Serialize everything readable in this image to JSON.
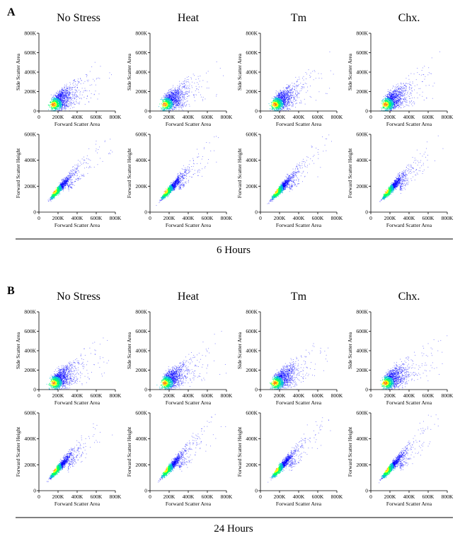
{
  "figure": {
    "panels": [
      {
        "letter": "A",
        "footer": "6 Hours",
        "columns": [
          "No Stress",
          "Heat",
          "Tm",
          "Chx."
        ]
      },
      {
        "letter": "B",
        "footer": "24 Hours",
        "columns": [
          "No Stress",
          "Heat",
          "Tm",
          "Chx."
        ]
      }
    ]
  },
  "chart_data": {
    "type": "scatter",
    "plot_style": "density-colored flow cytometry scatter (blue = sparse, green/yellow/red = dense)",
    "density_colors": [
      "#0000ff",
      "#00bcd4",
      "#00ff66",
      "#ffff00",
      "#ff7f00"
    ],
    "rows": [
      {
        "name": "side-vs-forward",
        "xlabel": "Forward Scatter Area",
        "ylabel": "Side Scatter Area",
        "xlim": [
          0,
          800000
        ],
        "ylim": [
          0,
          800000
        ],
        "xticks": [
          0,
          200000,
          400000,
          600000,
          800000
        ],
        "xticklabels": [
          "0",
          "200K",
          "400K",
          "600K",
          "800K"
        ],
        "yticks": [
          0,
          200000,
          400000,
          600000,
          800000
        ],
        "yticklabels": [
          "0",
          "200K",
          "400K",
          "600K",
          "800K"
        ],
        "population_center": [
          150000,
          70000
        ],
        "trend_slope": 0.75
      },
      {
        "name": "height-vs-area",
        "xlabel": "Forward Scatter Area",
        "ylabel": "Forward Scatter Height",
        "xlim": [
          0,
          800000
        ],
        "ylim": [
          0,
          600000
        ],
        "xticks": [
          0,
          200000,
          400000,
          600000,
          800000
        ],
        "xticklabels": [
          "0",
          "200K",
          "400K",
          "600K",
          "800K"
        ],
        "yticks": [
          0,
          200000,
          400000,
          600000
        ],
        "yticklabels": [
          "0",
          "200K",
          "400K",
          "600K"
        ],
        "population_center": [
          150000,
          170000
        ],
        "trend_slope": 0.85
      }
    ]
  }
}
